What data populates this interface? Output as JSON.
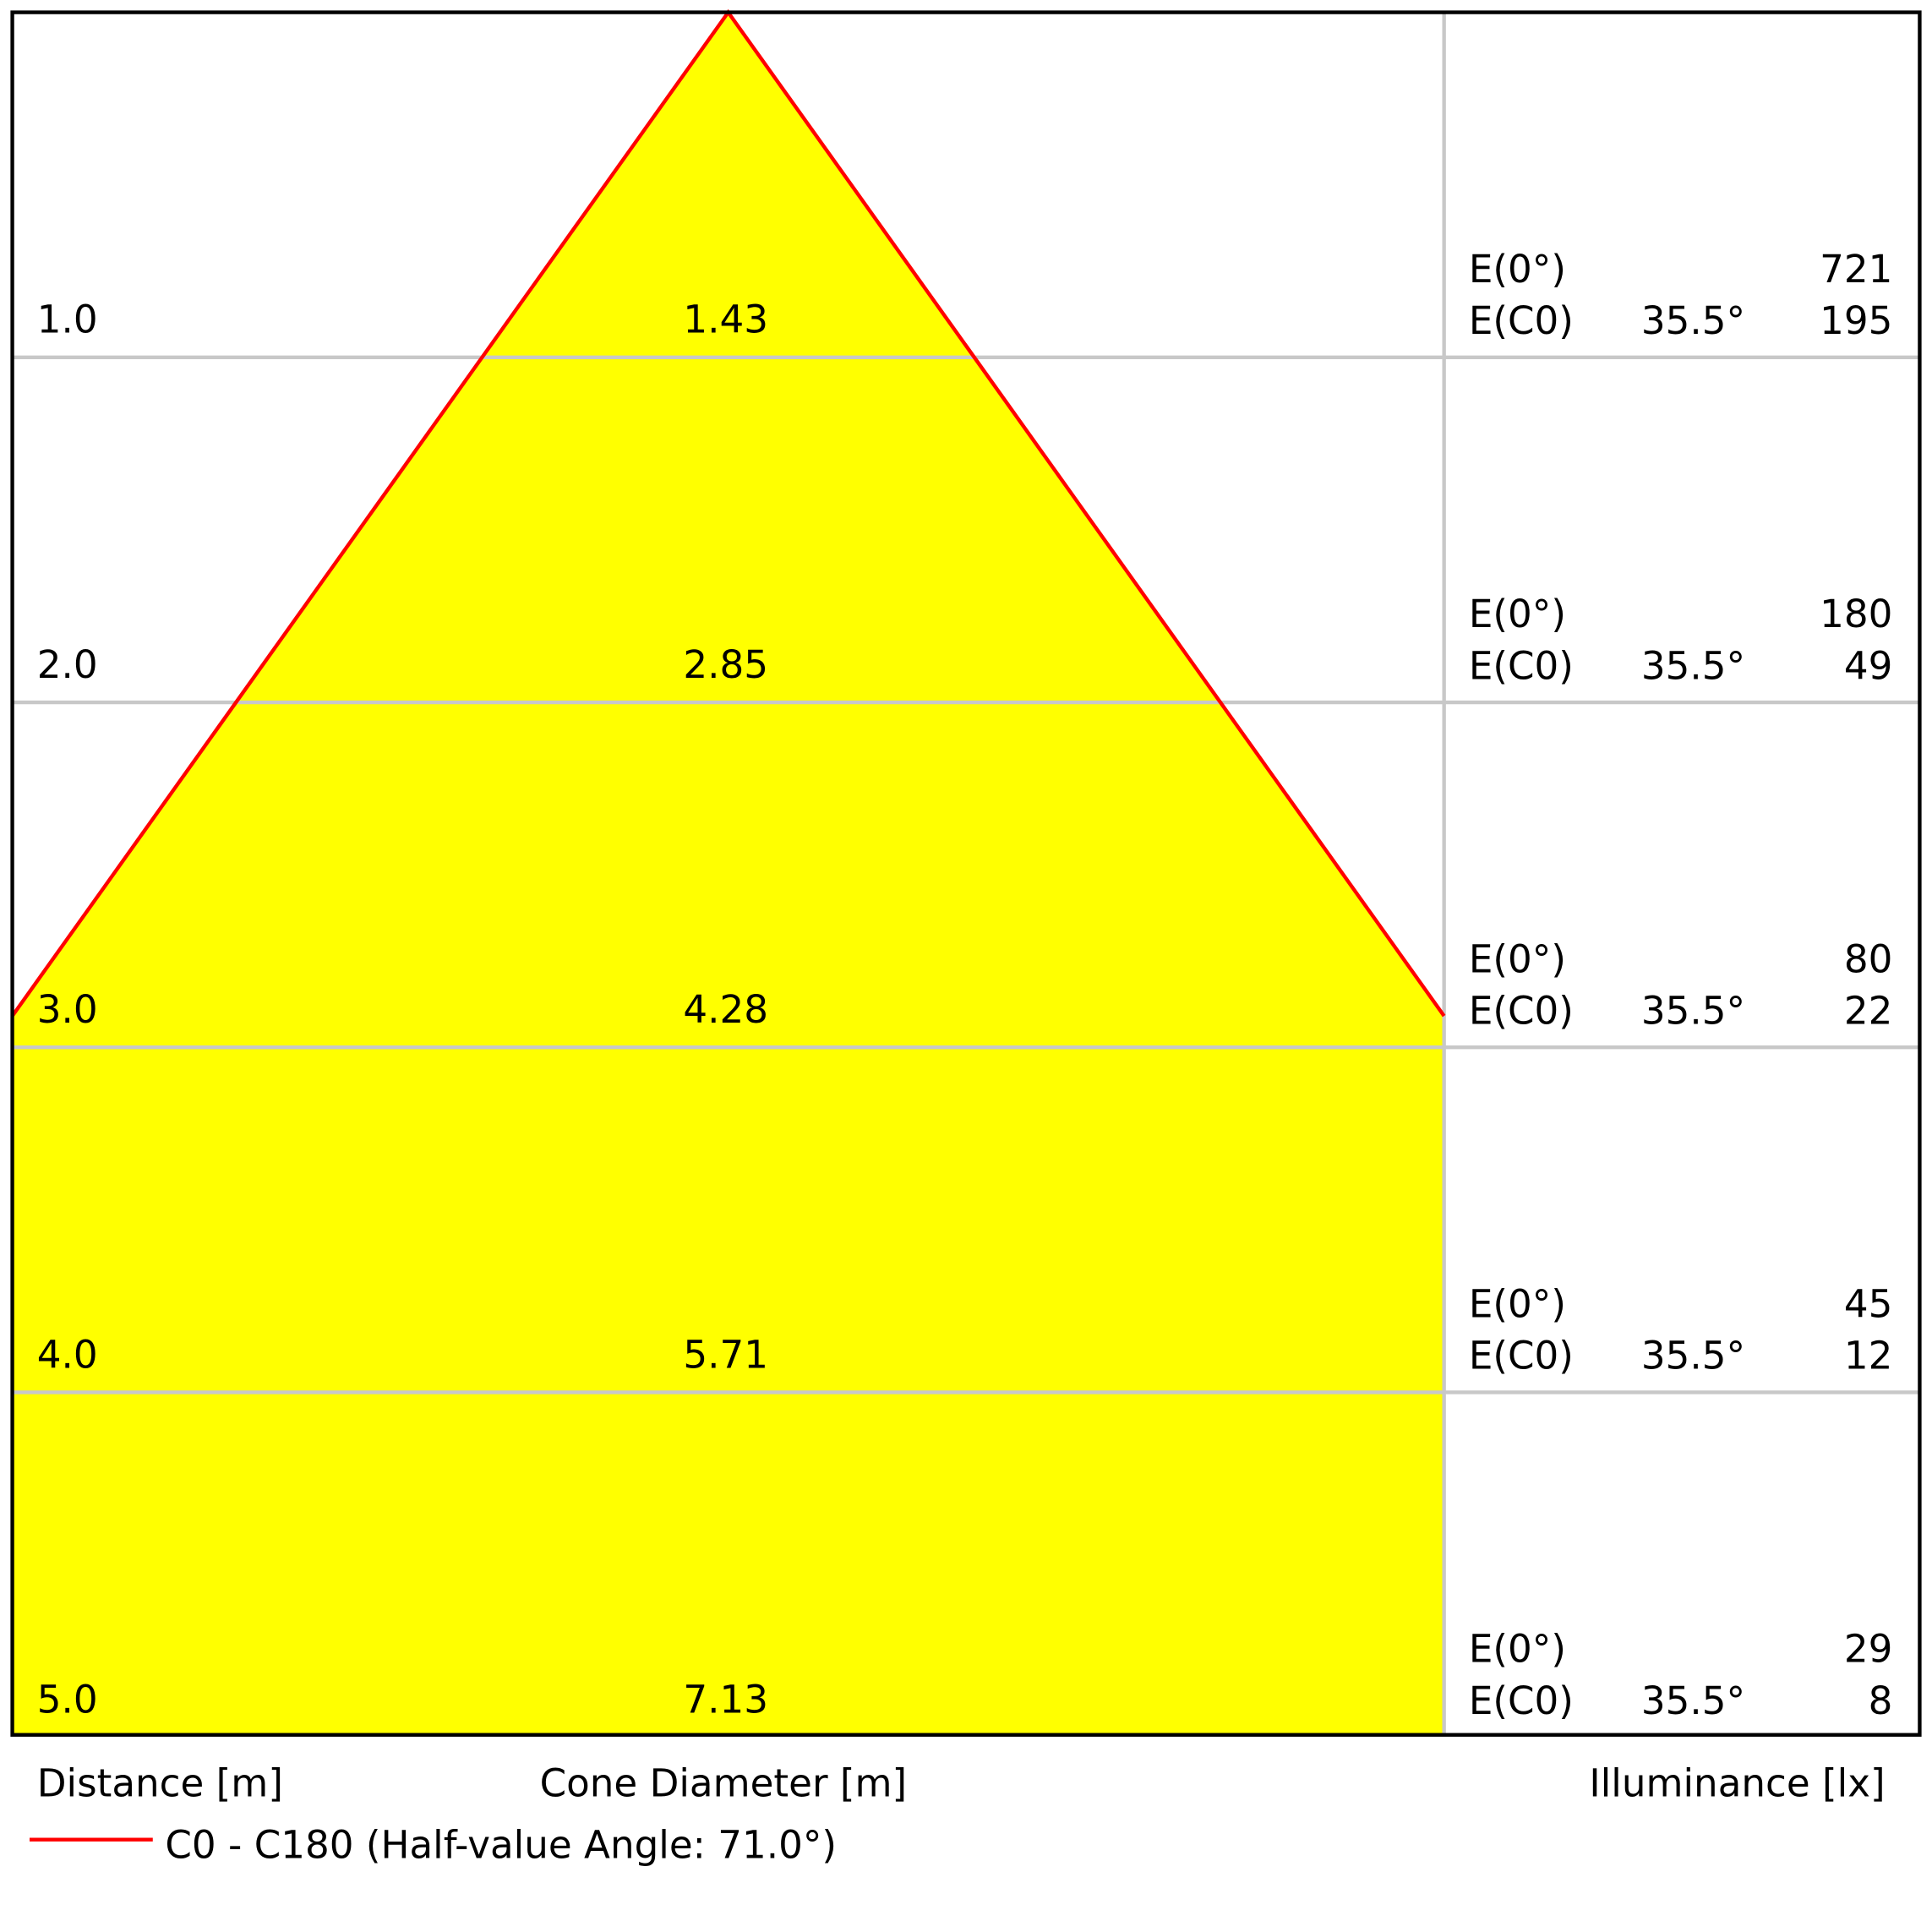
{
  "chart_data": {
    "type": "area",
    "title": "",
    "xlabel": "Cone Diameter [m]",
    "ylabel": "Distance [m]",
    "illuminance_label": "Illuminance [lx]",
    "half_value_angle_deg": 71.0,
    "fill_color": "#ffff00",
    "line_color": "#ff0000",
    "grid": true,
    "legend": {
      "position": "bottom-left",
      "label": "C0 - C180 (Half-value Angle: 71.0°)"
    },
    "rows": [
      {
        "distance": "1.0",
        "diameter": "1.43",
        "e0_label": "E(0°)",
        "e0": "721",
        "ec0_label": "E(C0)",
        "ec0_angle": "35.5°",
        "ec0": "195"
      },
      {
        "distance": "2.0",
        "diameter": "2.85",
        "e0_label": "E(0°)",
        "e0": "180",
        "ec0_label": "E(C0)",
        "ec0_angle": "35.5°",
        "ec0": "49"
      },
      {
        "distance": "3.0",
        "diameter": "4.28",
        "e0_label": "E(0°)",
        "e0": "80",
        "ec0_label": "E(C0)",
        "ec0_angle": "35.5°",
        "ec0": "22"
      },
      {
        "distance": "4.0",
        "diameter": "5.71",
        "e0_label": "E(0°)",
        "e0": "45",
        "ec0_label": "E(C0)",
        "ec0_angle": "35.5°",
        "ec0": "12"
      },
      {
        "distance": "5.0",
        "diameter": "7.13",
        "e0_label": "E(0°)",
        "e0": "29",
        "ec0_label": "E(C0)",
        "ec0_angle": "35.5°",
        "ec0": "8"
      }
    ]
  }
}
